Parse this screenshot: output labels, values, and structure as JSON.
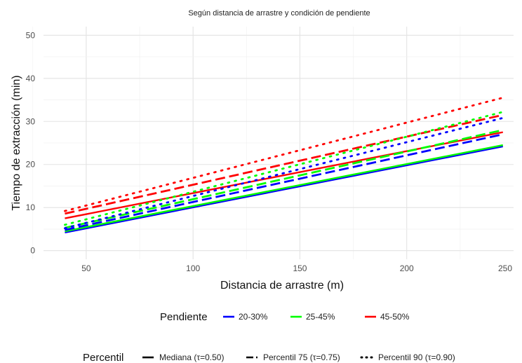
{
  "chart_data": {
    "type": "line",
    "title": "Según distancia de arrastre y condición de pendiente",
    "xlabel": "Distancia de arrastre (m)",
    "ylabel": "Tiempo de extracción (min)",
    "xlim": [
      30,
      250
    ],
    "ylim": [
      -2,
      52
    ],
    "x_ticks": [
      50,
      100,
      150,
      200,
      250
    ],
    "y_ticks": [
      0,
      10,
      20,
      30,
      40,
      50
    ],
    "grid": true,
    "pendiente_legend": {
      "title": "Pendiente",
      "entries": [
        {
          "label": "20-30%",
          "color": "#0000ff"
        },
        {
          "label": "25-45%",
          "color": "#00ff00"
        },
        {
          "label": "45-50%",
          "color": "#ff0000"
        }
      ]
    },
    "percentil_legend": {
      "title": "Percentil",
      "entries": [
        {
          "label": "Mediana (τ=0.50)",
          "linetype": "solid"
        },
        {
          "label": "Percentil 75 (τ=0.75)",
          "linetype": "dashed"
        },
        {
          "label": "Percentil 90 (τ=0.90)",
          "linetype": "dotted"
        }
      ]
    },
    "series": [
      {
        "pendiente": "20-30%",
        "percentil": "Mediana (τ=0.50)",
        "color": "#0000ff",
        "linetype": "solid",
        "x": [
          40,
          245
        ],
        "y": [
          4.2,
          24.2
        ]
      },
      {
        "pendiente": "25-45%",
        "percentil": "Mediana (τ=0.50)",
        "color": "#00ff00",
        "linetype": "solid",
        "x": [
          40,
          245
        ],
        "y": [
          4.5,
          24.5
        ]
      },
      {
        "pendiente": "45-50%",
        "percentil": "Mediana (τ=0.50)",
        "color": "#ff0000",
        "linetype": "solid",
        "x": [
          40,
          245
        ],
        "y": [
          7.5,
          27.5
        ]
      },
      {
        "pendiente": "20-30%",
        "percentil": "Percentil 75 (τ=0.75)",
        "color": "#0000ff",
        "linetype": "dashed",
        "x": [
          40,
          245
        ],
        "y": [
          4.8,
          27.0
        ]
      },
      {
        "pendiente": "25-45%",
        "percentil": "Percentil 75 (τ=0.75)",
        "color": "#00ff00",
        "linetype": "dashed",
        "x": [
          40,
          245
        ],
        "y": [
          5.3,
          28.0
        ]
      },
      {
        "pendiente": "45-50%",
        "percentil": "Percentil 75 (τ=0.75)",
        "color": "#ff0000",
        "linetype": "dashed",
        "x": [
          40,
          245
        ],
        "y": [
          8.6,
          31.5
        ]
      },
      {
        "pendiente": "20-30%",
        "percentil": "Percentil 90 (τ=0.90)",
        "color": "#0000ff",
        "linetype": "dotted",
        "x": [
          40,
          245
        ],
        "y": [
          5.2,
          30.8
        ]
      },
      {
        "pendiente": "25-45%",
        "percentil": "Percentil 90 (τ=0.90)",
        "color": "#00ff00",
        "linetype": "dotted",
        "x": [
          40,
          245
        ],
        "y": [
          6.0,
          32.2
        ]
      },
      {
        "pendiente": "45-50%",
        "percentil": "Percentil 90 (τ=0.90)",
        "color": "#ff0000",
        "linetype": "dotted",
        "x": [
          40,
          245
        ],
        "y": [
          9.2,
          35.5
        ]
      }
    ]
  }
}
